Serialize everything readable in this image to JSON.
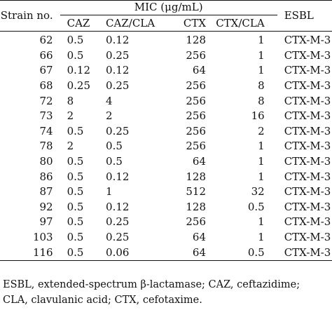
{
  "table": {
    "headers": {
      "strain": "Strain no.",
      "mic_group": "MIC (μg/mL)",
      "caz": "CAZ",
      "caz_cla": "CAZ/CLA",
      "ctx": "CTX",
      "ctx_cla": "CTX/CLA",
      "esbl": "ESBL"
    },
    "rows": [
      {
        "strain": "62",
        "caz": "0.5",
        "caz_cla": "0.12",
        "ctx": "128",
        "ctx_cla": "1",
        "esbl": "CTX-M-3"
      },
      {
        "strain": "66",
        "caz": "0.5",
        "caz_cla": "0.25",
        "ctx": "256",
        "ctx_cla": "1",
        "esbl": "CTX-M-3"
      },
      {
        "strain": "67",
        "caz": "0.12",
        "caz_cla": "0.12",
        "ctx": "64",
        "ctx_cla": "1",
        "esbl": "CTX-M-3"
      },
      {
        "strain": "68",
        "caz": "0.25",
        "caz_cla": "0.25",
        "ctx": "256",
        "ctx_cla": "8",
        "esbl": "CTX-M-3"
      },
      {
        "strain": "72",
        "caz": "8",
        "caz_cla": "4",
        "ctx": "256",
        "ctx_cla": "8",
        "esbl": "CTX-M-3"
      },
      {
        "strain": "73",
        "caz": "2",
        "caz_cla": "2",
        "ctx": "256",
        "ctx_cla": "16",
        "esbl": "CTX-M-3"
      },
      {
        "strain": "74",
        "caz": "0.5",
        "caz_cla": "0.25",
        "ctx": "256",
        "ctx_cla": "2",
        "esbl": "CTX-M-3"
      },
      {
        "strain": "78",
        "caz": "2",
        "caz_cla": "0.5",
        "ctx": "256",
        "ctx_cla": "1",
        "esbl": "CTX-M-3"
      },
      {
        "strain": "80",
        "caz": "0.5",
        "caz_cla": "0.5",
        "ctx": "64",
        "ctx_cla": "1",
        "esbl": "CTX-M-3"
      },
      {
        "strain": "86",
        "caz": "0.5",
        "caz_cla": "0.12",
        "ctx": "128",
        "ctx_cla": "1",
        "esbl": "CTX-M-3"
      },
      {
        "strain": "87",
        "caz": "0.5",
        "caz_cla": "1",
        "ctx": "512",
        "ctx_cla": "32",
        "esbl": "CTX-M-3"
      },
      {
        "strain": "92",
        "caz": "0.5",
        "caz_cla": "0.12",
        "ctx": "128",
        "ctx_cla": "0.5",
        "esbl": "CTX-M-3"
      },
      {
        "strain": "97",
        "caz": "0.5",
        "caz_cla": "0.25",
        "ctx": "256",
        "ctx_cla": "1",
        "esbl": "CTX-M-3"
      },
      {
        "strain": "103",
        "caz": "0.5",
        "caz_cla": "0.25",
        "ctx": "64",
        "ctx_cla": "1",
        "esbl": "CTX-M-3"
      },
      {
        "strain": "116",
        "caz": "0.5",
        "caz_cla": "0.06",
        "ctx": "64",
        "ctx_cla": "0.5",
        "esbl": "CTX-M-3"
      }
    ]
  },
  "footnote": {
    "line1": "ESBL, extended-spectrum β-lactamase; CAZ, ceftazidime;",
    "line2": "CLA, clavulanic acid; CTX, cefotaxime."
  }
}
